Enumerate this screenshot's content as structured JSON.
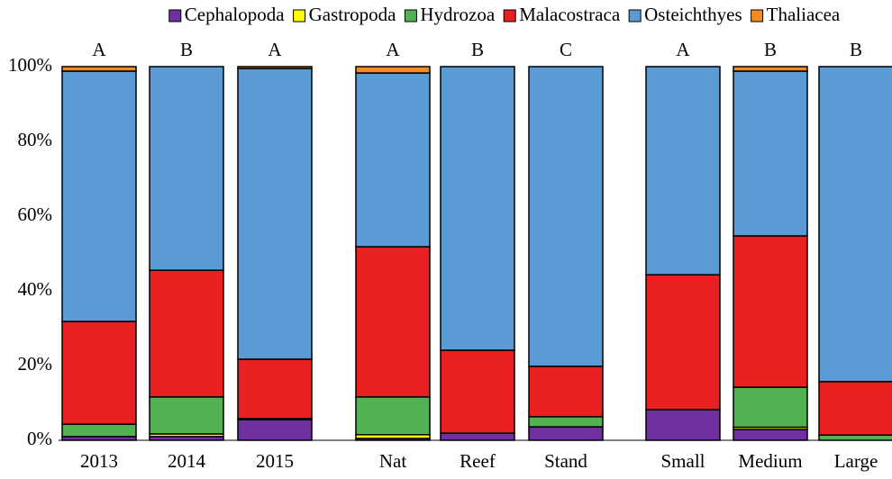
{
  "chart_data": {
    "type": "stacked_bar",
    "categories": [
      "2013",
      "2014",
      "2015",
      "Nat",
      "Reef",
      "Stand",
      "Small",
      "Medium",
      "Large"
    ],
    "annotations": [
      "A",
      "B",
      "A",
      "A",
      "B",
      "C",
      "A",
      "B",
      "B"
    ],
    "series": [
      {
        "name": "Cephalopoda",
        "color": "#7030a0",
        "values": [
          1,
          1,
          5.5,
          0.5,
          1.9,
          3.6,
          8.2,
          2.9,
          0
        ]
      },
      {
        "name": "Gastropoda",
        "color": "#ffff00",
        "values": [
          0,
          0.7,
          0.3,
          1,
          0,
          0,
          0,
          0.6,
          0
        ]
      },
      {
        "name": "Hydrozoa",
        "color": "#52b152",
        "values": [
          3.3,
          9.9,
          0,
          10.1,
          0,
          2.7,
          0,
          10.7,
          1.4
        ]
      },
      {
        "name": "Malacostraca",
        "color": "#e82020",
        "values": [
          27.5,
          33.9,
          15.9,
          40.2,
          22.2,
          13.5,
          36.1,
          40.5,
          14.3
        ]
      },
      {
        "name": "Osteichthyes",
        "color": "#5b9bd5",
        "values": [
          67,
          54.5,
          77.8,
          46.5,
          75.9,
          80.2,
          55.7,
          44.1,
          84.3
        ]
      },
      {
        "name": "Thaliacea",
        "color": "#f28c1e",
        "values": [
          1.2,
          0,
          0.5,
          1.7,
          0,
          0,
          0,
          1.2,
          0
        ]
      }
    ],
    "ylim": [
      0,
      100
    ],
    "yticks": [
      {
        "value": 0,
        "label": "0%"
      },
      {
        "value": 20,
        "label": "20%"
      },
      {
        "value": 40,
        "label": "40%"
      },
      {
        "value": 60,
        "label": "60%"
      },
      {
        "value": 80,
        "label": "80%"
      },
      {
        "value": 100,
        "label": "100%"
      }
    ]
  }
}
